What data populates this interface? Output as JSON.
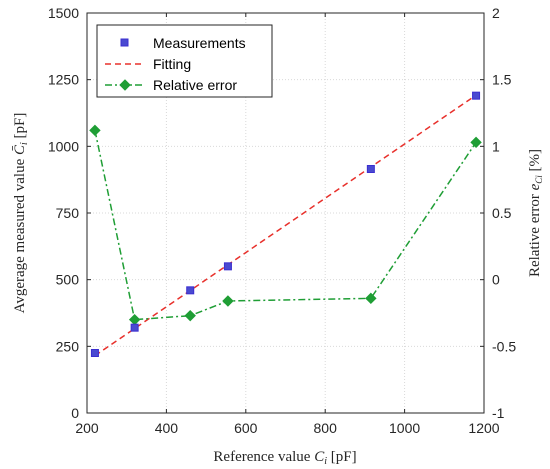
{
  "chart_data": {
    "type": "line",
    "xlabel": "Reference value C_i [pF]",
    "xlabel_parts": {
      "main": "Reference value ",
      "sym": "C",
      "sub": "i",
      "unit": " [pF]"
    },
    "ylabel_left": "Avgerage measured value C̄_i [pF]",
    "ylabel_left_parts": {
      "main": "Avgerage measured value ",
      "sym": "C̄",
      "sub": "i",
      "unit": " [pF]"
    },
    "ylabel_right": "Relative error e_Ci [%]",
    "ylabel_right_parts": {
      "main": "Relative error ",
      "sym": "e",
      "sub": "Ci",
      "unit": " [%]"
    },
    "xlim": [
      200,
      1200
    ],
    "ylim_left": [
      0,
      1500
    ],
    "ylim_right": [
      -1,
      2
    ],
    "xticks": [
      200,
      400,
      600,
      800,
      1000,
      1200
    ],
    "yticks_left": [
      0,
      250,
      500,
      750,
      1000,
      1250,
      1500
    ],
    "yticks_right": [
      -1,
      -0.5,
      0,
      0.5,
      1,
      1.5,
      2
    ],
    "ytick_labels_right": [
      "-1",
      "-0.5",
      "0",
      "0.5",
      "1",
      "1.5",
      "2"
    ],
    "grid": true,
    "legend_position": "top-left",
    "series": [
      {
        "name": "Measurements",
        "axis": "left",
        "style": "markers",
        "color": "#3b2fd0",
        "marker_fill": "#4a4ad0",
        "x": [
          220,
          320,
          460,
          555,
          915,
          1180
        ],
        "y": [
          225,
          320,
          460,
          550,
          915,
          1190
        ]
      },
      {
        "name": "Fitting",
        "axis": "left",
        "style": "dashed",
        "color": "#e8302b",
        "x": [
          220,
          1180
        ],
        "y": [
          215,
          1192
        ]
      },
      {
        "name": "Relative error",
        "axis": "right",
        "style": "dashdot-diamond",
        "color": "#1f9e35",
        "x": [
          220,
          320,
          460,
          555,
          915,
          1180
        ],
        "y": [
          1.12,
          -0.3,
          -0.27,
          -0.16,
          -0.14,
          1.03
        ]
      }
    ]
  }
}
